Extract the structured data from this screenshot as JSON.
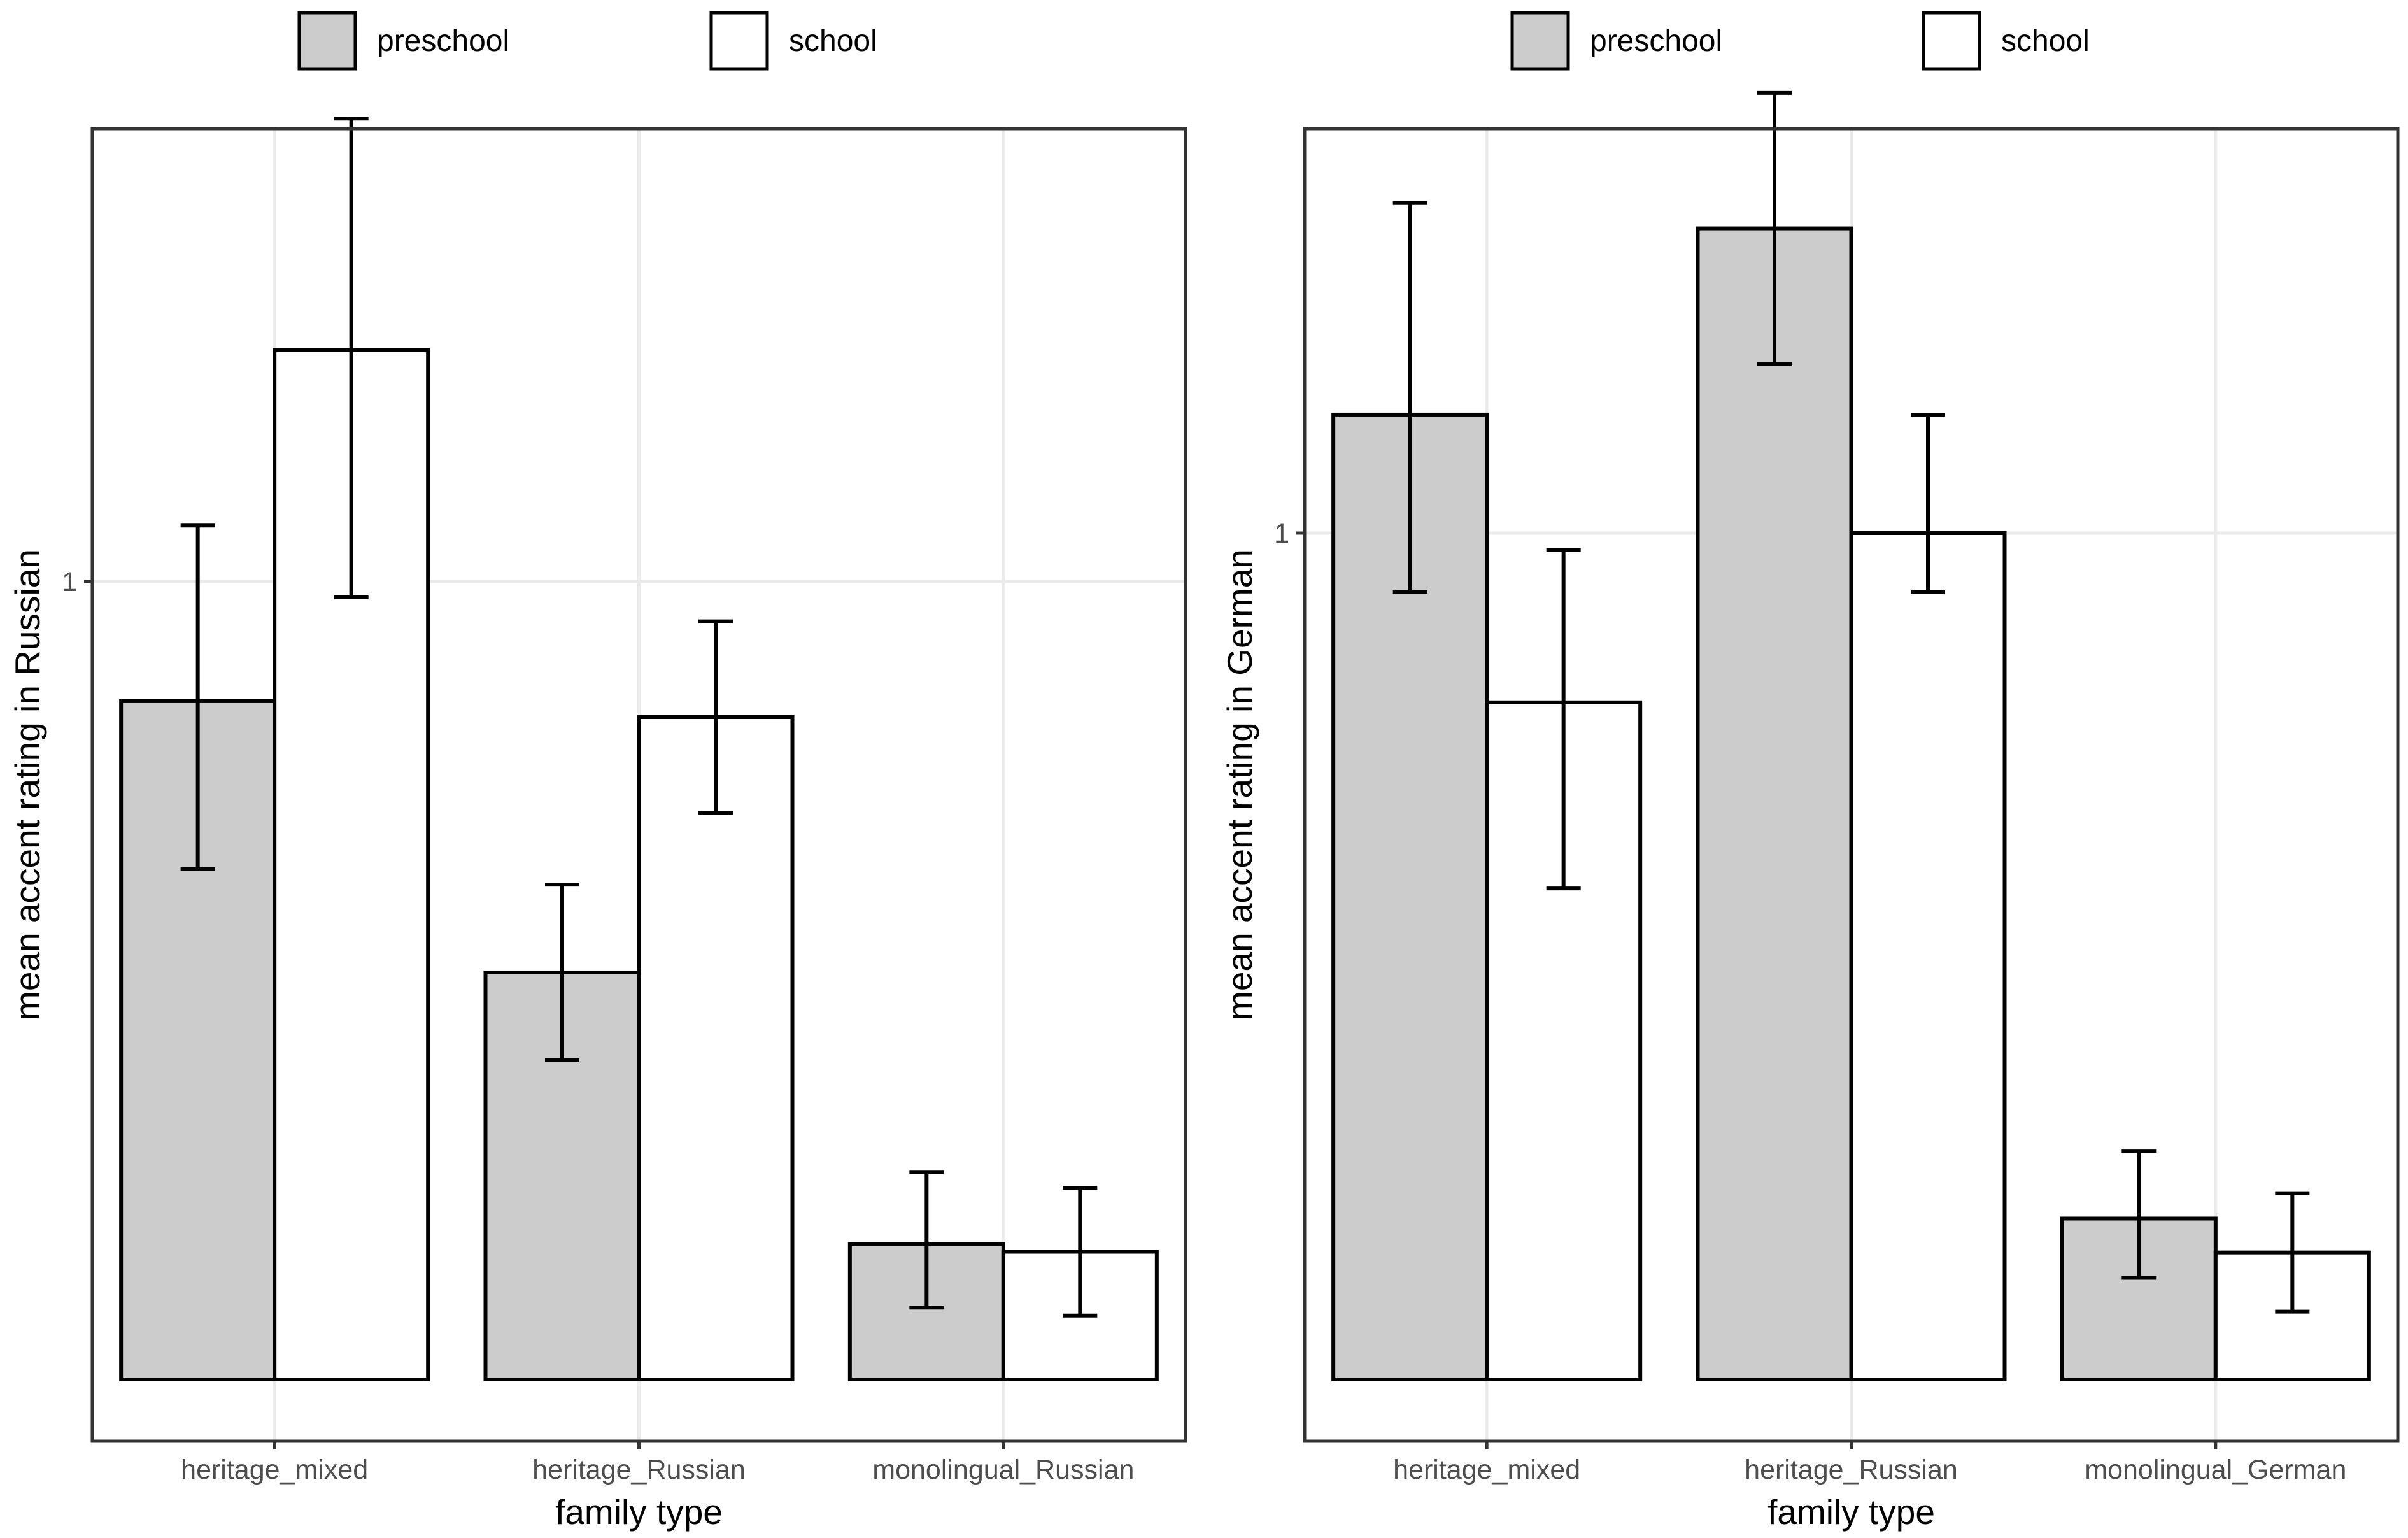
{
  "legend": [
    {
      "label": "preschool",
      "fill": "#cccccc"
    },
    {
      "label": "school",
      "fill": "#ffffff"
    }
  ],
  "colors": {
    "preschool": "#cccccc",
    "school": "#ffffff",
    "bar_stroke": "#000000",
    "grid": "#ebebeb",
    "panel_border": "#333333"
  },
  "chart_data": [
    {
      "type": "bar",
      "xlabel": "family type",
      "ylabel": "mean accent rating in Russian",
      "categories": [
        "heritage_mixed",
        "heritage_Russian",
        "monolingual_Russian"
      ],
      "y_ticks": [
        1
      ],
      "y_tick_labels": [
        "1"
      ],
      "ylim": [
        0,
        1.44
      ],
      "grid": true,
      "legend_position": "top",
      "series": [
        {
          "name": "preschool",
          "values": [
            0.85,
            0.51,
            0.17
          ],
          "err_low": [
            0.64,
            0.4,
            0.09
          ],
          "err_high": [
            1.07,
            0.62,
            0.26
          ]
        },
        {
          "name": "school",
          "values": [
            1.29,
            0.83,
            0.16
          ],
          "err_low": [
            0.98,
            0.71,
            0.08
          ],
          "err_high": [
            1.58,
            0.95,
            0.24
          ]
        }
      ]
    },
    {
      "type": "bar",
      "xlabel": "family type",
      "ylabel": "mean accent rating in German",
      "categories": [
        "heritage_mixed",
        "heritage_Russian",
        "monolingual_German"
      ],
      "y_ticks": [
        1
      ],
      "y_tick_labels": [
        "1"
      ],
      "ylim": [
        0,
        1.44
      ],
      "grid": true,
      "legend_position": "top",
      "series": [
        {
          "name": "preschool",
          "values": [
            1.14,
            1.36,
            0.19
          ],
          "err_low": [
            0.93,
            1.2,
            0.12
          ],
          "err_high": [
            1.39,
            1.52,
            0.27
          ]
        },
        {
          "name": "school",
          "values": [
            0.8,
            1.0,
            0.15
          ],
          "err_low": [
            0.58,
            0.93,
            0.08
          ],
          "err_high": [
            0.98,
            1.14,
            0.22
          ]
        }
      ]
    }
  ]
}
